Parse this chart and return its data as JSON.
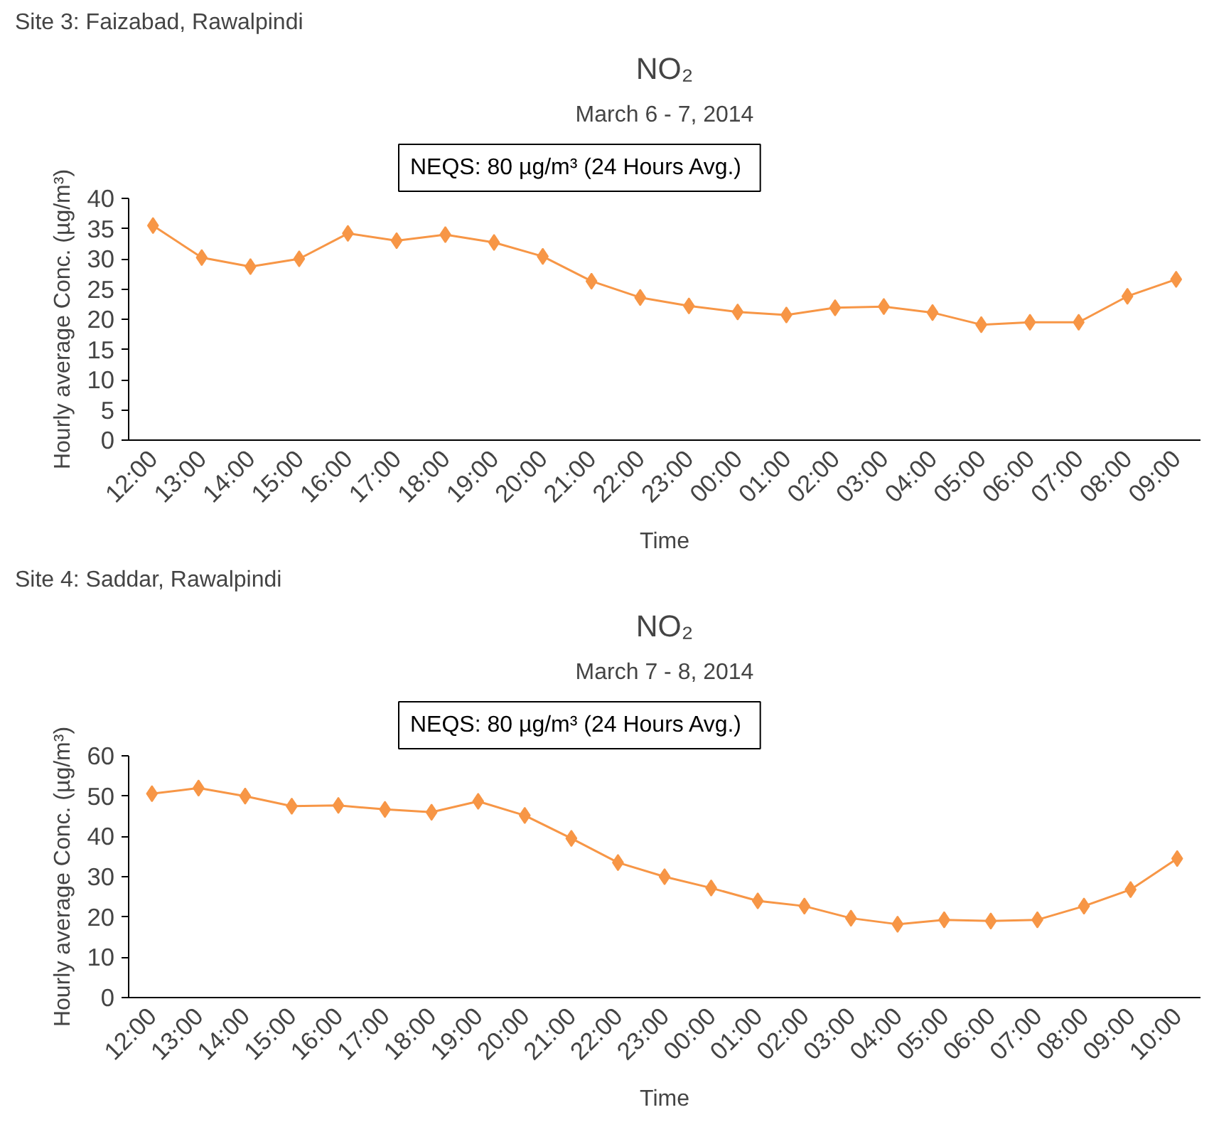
{
  "chart_data": [
    {
      "type": "line",
      "title": "NO₂",
      "subtitle": "March 6 - 7, 2014",
      "xlabel": "Time",
      "ylabel": "Hourly average Conc. (µg/m³)",
      "annotations": [
        "Site 3: Faizabad, Rawalpindi",
        "NEQS: 80 µg/m³  (24 Hours Avg.)"
      ],
      "categories": [
        "12:00",
        "13:00",
        "14:00",
        "15:00",
        "16:00",
        "17:00",
        "18:00",
        "19:00",
        "20:00",
        "21:00",
        "22:00",
        "23:00",
        "00:00",
        "01:00",
        "02:00",
        "03:00",
        "04:00",
        "05:00",
        "06:00",
        "07:00",
        "08:00",
        "09:00"
      ],
      "series": [
        {
          "color": "#f79646",
          "values": [
            35.5,
            30.2,
            28.7,
            30.0,
            34.2,
            33.0,
            34.0,
            32.7,
            30.4,
            26.3,
            23.6,
            22.2,
            21.2,
            20.7,
            21.9,
            22.1,
            21.1,
            19.1,
            19.5,
            19.5,
            23.8,
            26.6
          ]
        }
      ],
      "ylim": [
        0,
        40
      ],
      "yticks": [
        0,
        5,
        10,
        15,
        20,
        25,
        30,
        35,
        40
      ],
      "marker": "diamond",
      "grid": false
    },
    {
      "type": "line",
      "title": "NO₂",
      "subtitle": "March 7 - 8, 2014",
      "xlabel": "Time",
      "ylabel": "Hourly average Conc. (µg/m³)",
      "annotations": [
        "Site 4: Saddar, Rawalpindi",
        "NEQS: 80 µg/m³  (24 Hours Avg.)"
      ],
      "categories": [
        "12:00",
        "13:00",
        "14:00",
        "15:00",
        "16:00",
        "17:00",
        "18:00",
        "19:00",
        "20:00",
        "21:00",
        "22:00",
        "23:00",
        "00:00",
        "01:00",
        "02:00",
        "03:00",
        "04:00",
        "05:00",
        "06:00",
        "07:00",
        "08:00",
        "09:00",
        "10:00"
      ],
      "series": [
        {
          "color": "#f79646",
          "values": [
            50.6,
            52.0,
            50.0,
            47.5,
            47.7,
            46.7,
            46.0,
            48.7,
            45.2,
            39.5,
            33.5,
            30.0,
            27.2,
            24.0,
            22.7,
            19.7,
            18.2,
            19.3,
            19.0,
            19.3,
            22.7,
            26.8,
            34.5
          ]
        }
      ],
      "ylim": [
        0,
        60
      ],
      "yticks": [
        0,
        10,
        20,
        30,
        40,
        50,
        60
      ],
      "marker": "diamond",
      "grid": false
    }
  ]
}
